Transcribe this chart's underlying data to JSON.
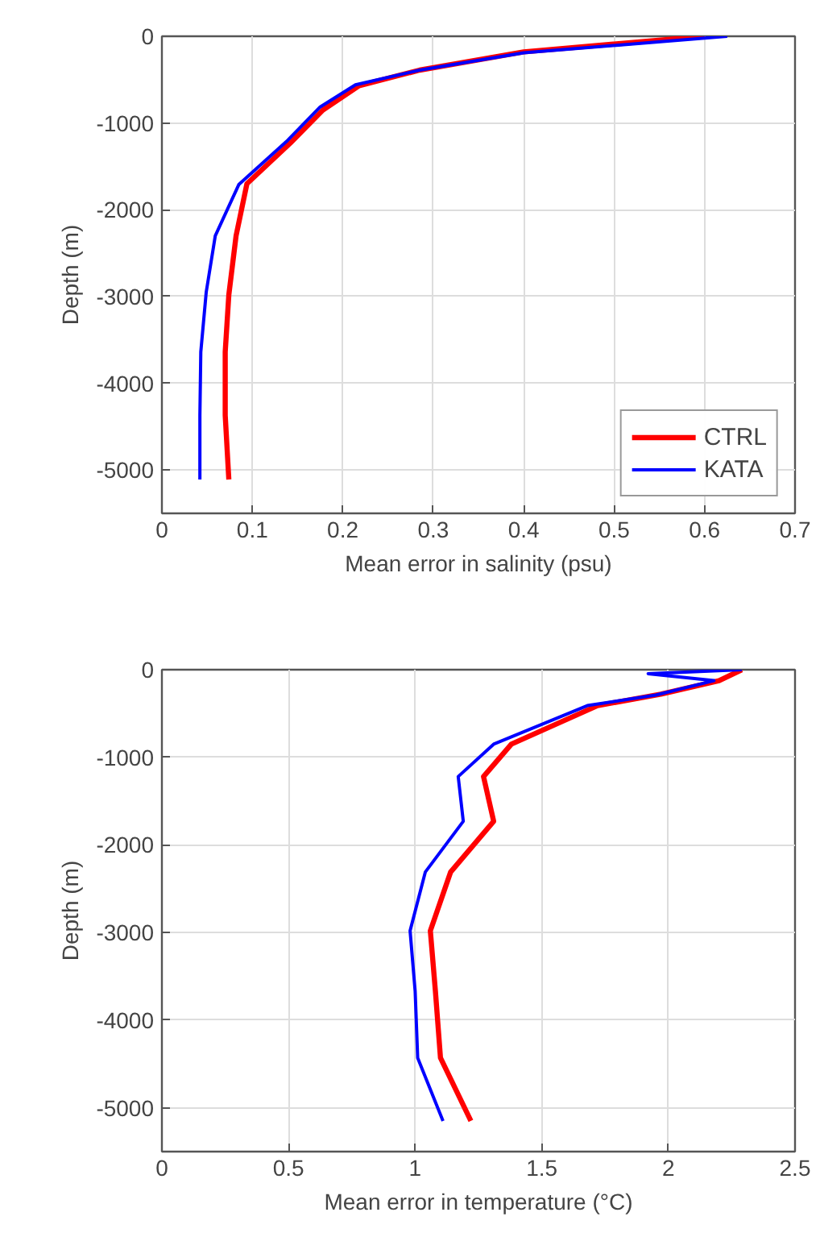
{
  "chart_data": [
    {
      "type": "line",
      "xlabel": "Mean error in salinity (psu)",
      "ylabel": "Depth (m)",
      "xlim": [
        0,
        0.7
      ],
      "xticks": [
        0,
        0.1,
        0.2,
        0.3,
        0.4,
        0.5,
        0.6,
        0.7
      ],
      "ylim": [
        -5500,
        0
      ],
      "yticks": [
        0,
        -1000,
        -2000,
        -3000,
        -4000,
        -5000
      ],
      "grid": true,
      "legend": "bottom right",
      "series": [
        {
          "name": "CTRL",
          "color": "#ff0000",
          "x": [
            0.6,
            0.4,
            0.285,
            0.218,
            0.178,
            0.142,
            0.094,
            0.082,
            0.074,
            0.07,
            0.07,
            0.074
          ],
          "values": [
            0,
            -180,
            -390,
            -570,
            -850,
            -1230,
            -1700,
            -2300,
            -2980,
            -3640,
            -4370,
            -5110
          ]
        },
        {
          "name": "KATA",
          "color": "#0000ff",
          "x": [
            0.625,
            0.4,
            0.285,
            0.214,
            0.175,
            0.139,
            0.085,
            0.059,
            0.049,
            0.043,
            0.042,
            0.042
          ],
          "values": [
            0,
            -190,
            -390,
            -560,
            -815,
            -1200,
            -1710,
            -2300,
            -2950,
            -3640,
            -4370,
            -5110
          ]
        }
      ]
    },
    {
      "type": "line",
      "xlabel": "Mean error in temperature (°C)",
      "ylabel": "Depth (m)",
      "xlim": [
        0,
        2.5
      ],
      "xticks": [
        0,
        0.5,
        1,
        1.5,
        2,
        2.5
      ],
      "ylim": [
        -5500,
        0
      ],
      "yticks": [
        0,
        -1000,
        -2000,
        -3000,
        -4000,
        -5000
      ],
      "grid": true,
      "series": [
        {
          "color": "#ff0000",
          "x": [
            2.29,
            2.2,
            1.97,
            1.72,
            1.38,
            1.27,
            1.31,
            1.14,
            1.06,
            1.08,
            1.1,
            1.22
          ],
          "values": [
            0,
            -125,
            -280,
            -410,
            -850,
            -1220,
            -1730,
            -2310,
            -2980,
            -3670,
            -4430,
            -5150
          ]
        },
        {
          "color": "#0000ff",
          "x": [
            2.29,
            1.92,
            2.18,
            1.95,
            1.68,
            1.31,
            1.17,
            1.19,
            1.04,
            0.98,
            1.0,
            1.01,
            1.11
          ],
          "values": [
            0,
            -45,
            -125,
            -290,
            -410,
            -850,
            -1220,
            -1730,
            -2310,
            -2980,
            -3670,
            -4430,
            -5150
          ]
        }
      ]
    }
  ]
}
